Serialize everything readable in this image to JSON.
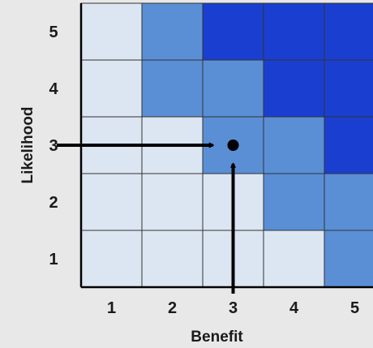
{
  "chart_data": {
    "type": "heatmap",
    "xlabel": "Benefit",
    "ylabel": "Likelihood",
    "x_categories": [
      "1",
      "2",
      "3",
      "4",
      "5"
    ],
    "y_categories": [
      "1",
      "2",
      "3",
      "4",
      "5"
    ],
    "level_colors": [
      "#dce6f2",
      "#5a8fd6",
      "#1a3fd0"
    ],
    "grid": true,
    "cells": [
      [
        0,
        0,
        0,
        0,
        1
      ],
      [
        0,
        0,
        0,
        1,
        1
      ],
      [
        0,
        0,
        1,
        1,
        2
      ],
      [
        0,
        1,
        1,
        2,
        2
      ],
      [
        0,
        1,
        2,
        2,
        2
      ]
    ],
    "marker": {
      "x": 3,
      "y": 3
    },
    "annotations": {
      "horizontal_arrow": {
        "from_x": 0,
        "to_x": 3,
        "y": 3
      },
      "vertical_arrow": {
        "x": 3,
        "from_y": 0,
        "to_y": 3
      }
    }
  }
}
